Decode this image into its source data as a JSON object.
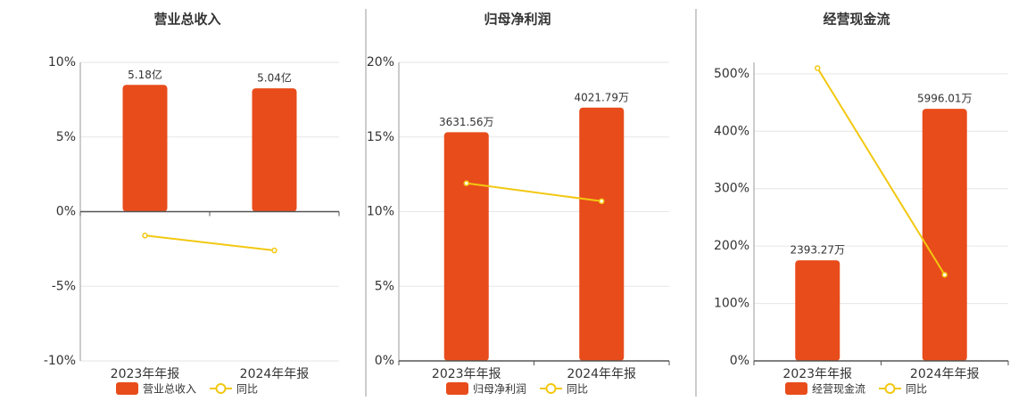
{
  "chart_data": [
    {
      "type": "combo",
      "title": "营业总收入",
      "categories": [
        "2023年年报",
        "2024年年报"
      ],
      "series": [
        {
          "name": "营业总收入",
          "color": "#e84c1b",
          "axis": "y2",
          "values": [
            5.18,
            5.04
          ],
          "value_labels": [
            "5.18亿",
            "5.04亿"
          ]
        },
        {
          "name": "同比",
          "color": "#f2c811",
          "values": [
            -1.6,
            -2.6
          ]
        }
      ],
      "ylim": [
        -10,
        10
      ],
      "yticks": [
        {
          "value": -10,
          "label": "-10%"
        },
        {
          "value": -5,
          "label": "-5%"
        },
        {
          "value": 0,
          "label": "0%"
        },
        {
          "value": 5,
          "label": "5%"
        },
        {
          "value": 10,
          "label": "10%"
        }
      ],
      "y2lim": [
        -6.1,
        6.1
      ],
      "grid": true
    },
    {
      "type": "combo",
      "title": "归母净利润",
      "categories": [
        "2023年年报",
        "2024年年报"
      ],
      "series": [
        {
          "name": "归母净利润",
          "color": "#e84c1b",
          "axis": "y2",
          "values": [
            3631.56,
            4021.79
          ],
          "value_labels": [
            "3631.56万",
            "4021.79万"
          ]
        },
        {
          "name": "同比",
          "color": "#f2c811",
          "values": [
            11.9,
            10.7
          ]
        }
      ],
      "ylim": [
        0,
        20
      ],
      "yticks": [
        {
          "value": 0,
          "label": "0%"
        },
        {
          "value": 5,
          "label": "5%"
        },
        {
          "value": 10,
          "label": "10%"
        },
        {
          "value": 15,
          "label": "15%"
        },
        {
          "value": 20,
          "label": "20%"
        }
      ],
      "y2lim": [
        0,
        4740
      ],
      "grid": true
    },
    {
      "type": "combo",
      "title": "经营现金流",
      "categories": [
        "2023年年报",
        "2024年年报"
      ],
      "series": [
        {
          "name": "经营现金流",
          "color": "#e84c1b",
          "axis": "y2",
          "values": [
            2393.27,
            5996.01
          ],
          "value_labels": [
            "2393.27万",
            "5996.01万"
          ]
        },
        {
          "name": "同比",
          "color": "#f2c811",
          "values": [
            510,
            150
          ]
        }
      ],
      "ylim": [
        0,
        520
      ],
      "yticks": [
        {
          "value": 0,
          "label": "0%"
        },
        {
          "value": 100,
          "label": "100%"
        },
        {
          "value": 200,
          "label": "200%"
        },
        {
          "value": 300,
          "label": "300%"
        },
        {
          "value": 400,
          "label": "400%"
        },
        {
          "value": 500,
          "label": "500%"
        }
      ],
      "y2lim": [
        0,
        7100
      ],
      "grid": true
    }
  ]
}
